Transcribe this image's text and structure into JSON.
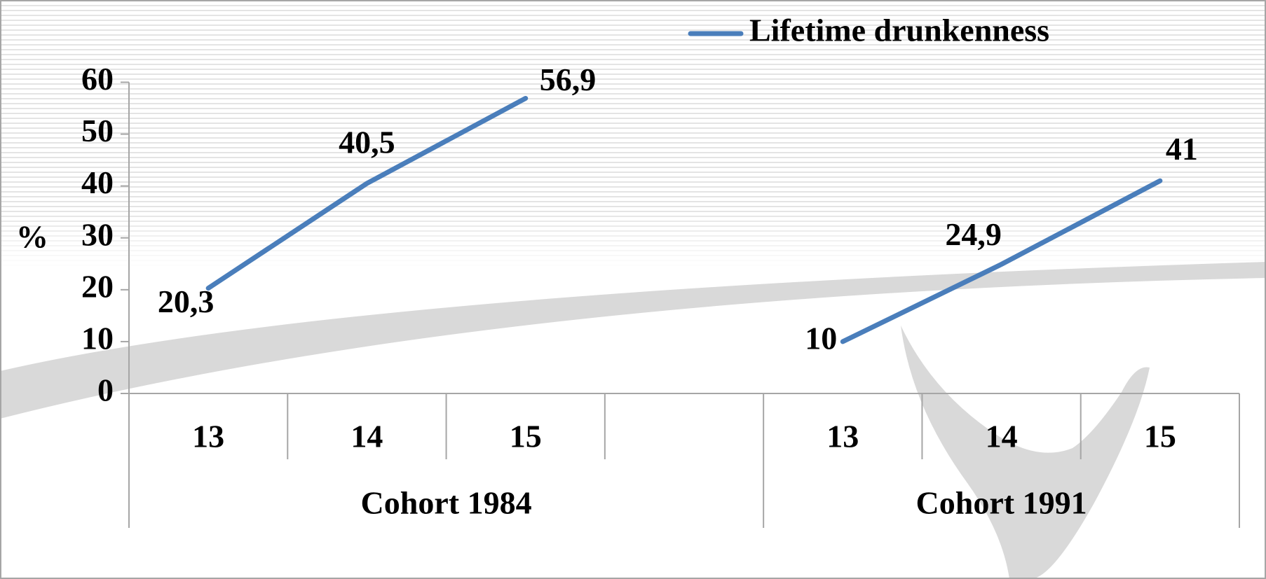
{
  "chart_data": {
    "type": "line",
    "y_label": "%",
    "categories": [
      "13",
      "14",
      "15",
      null,
      "13",
      "14",
      "15"
    ],
    "groups": [
      "Cohort 1984",
      "Cohort 1991"
    ],
    "series": [
      {
        "name": "Lifetime drunkenness",
        "color": "#4a7ebb",
        "values": [
          20.3,
          40.5,
          56.9,
          null,
          10,
          24.9,
          41
        ],
        "value_labels": [
          "20,3",
          "40,5",
          "56,9",
          null,
          "10",
          "24,9",
          "41"
        ]
      }
    ],
    "ylim": [
      0,
      60
    ],
    "yticks": [
      0,
      10,
      20,
      30,
      40,
      50,
      60
    ],
    "grid": false,
    "legend": "top-right"
  }
}
